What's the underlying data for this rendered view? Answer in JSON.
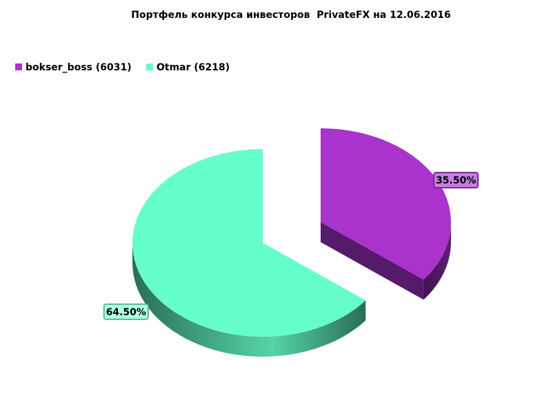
{
  "chart_data": {
    "type": "pie",
    "title": "Портфель конкурса инвесторов  PrivateFX на 12.06.2016",
    "categories": [
      "bokser_boss (6031)",
      "Otmar (6218)"
    ],
    "values": [
      35.5,
      64.5
    ],
    "value_labels": [
      "35.50%",
      "64.50%"
    ],
    "colors": [
      "#a933cc",
      "#66ffcc"
    ],
    "legend": "top-left"
  }
}
